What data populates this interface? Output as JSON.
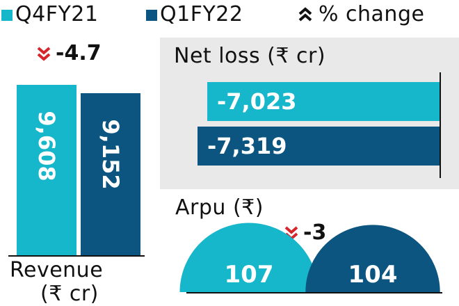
{
  "colors": {
    "q4fy21": "#16b6cb",
    "q1fy22": "#0c5580",
    "decline": "#d6252b",
    "panel_bg": "#e9e9e9"
  },
  "legend": {
    "series1": "Q4FY21",
    "series2": "Q1FY22",
    "change_icon": "double-chevron-up-icon",
    "change_label": "% change"
  },
  "chart_data": [
    {
      "type": "bar",
      "orientation": "vertical",
      "title": "Revenue",
      "unit": "(₹ cr)",
      "series": [
        {
          "name": "Q4FY21",
          "values": [
            9608
          ],
          "label": "9,608"
        },
        {
          "name": "Q1FY22",
          "values": [
            9152
          ],
          "label": "9,152"
        }
      ],
      "change": {
        "direction": "down",
        "value": "-4.7"
      }
    },
    {
      "type": "bar",
      "orientation": "horizontal",
      "title": "Net loss (₹ cr)",
      "series": [
        {
          "name": "Q4FY21",
          "values": [
            -7023
          ],
          "label": "-7,023"
        },
        {
          "name": "Q1FY22",
          "values": [
            -7319
          ],
          "label": "-7,319"
        }
      ]
    },
    {
      "type": "pie",
      "style": "semicircle",
      "title": "Arpu (₹)",
      "series": [
        {
          "name": "Q4FY21",
          "values": [
            107
          ],
          "label": "107"
        },
        {
          "name": "Q1FY22",
          "values": [
            104
          ],
          "label": "104"
        }
      ],
      "change": {
        "direction": "down",
        "value": "-3"
      }
    }
  ]
}
